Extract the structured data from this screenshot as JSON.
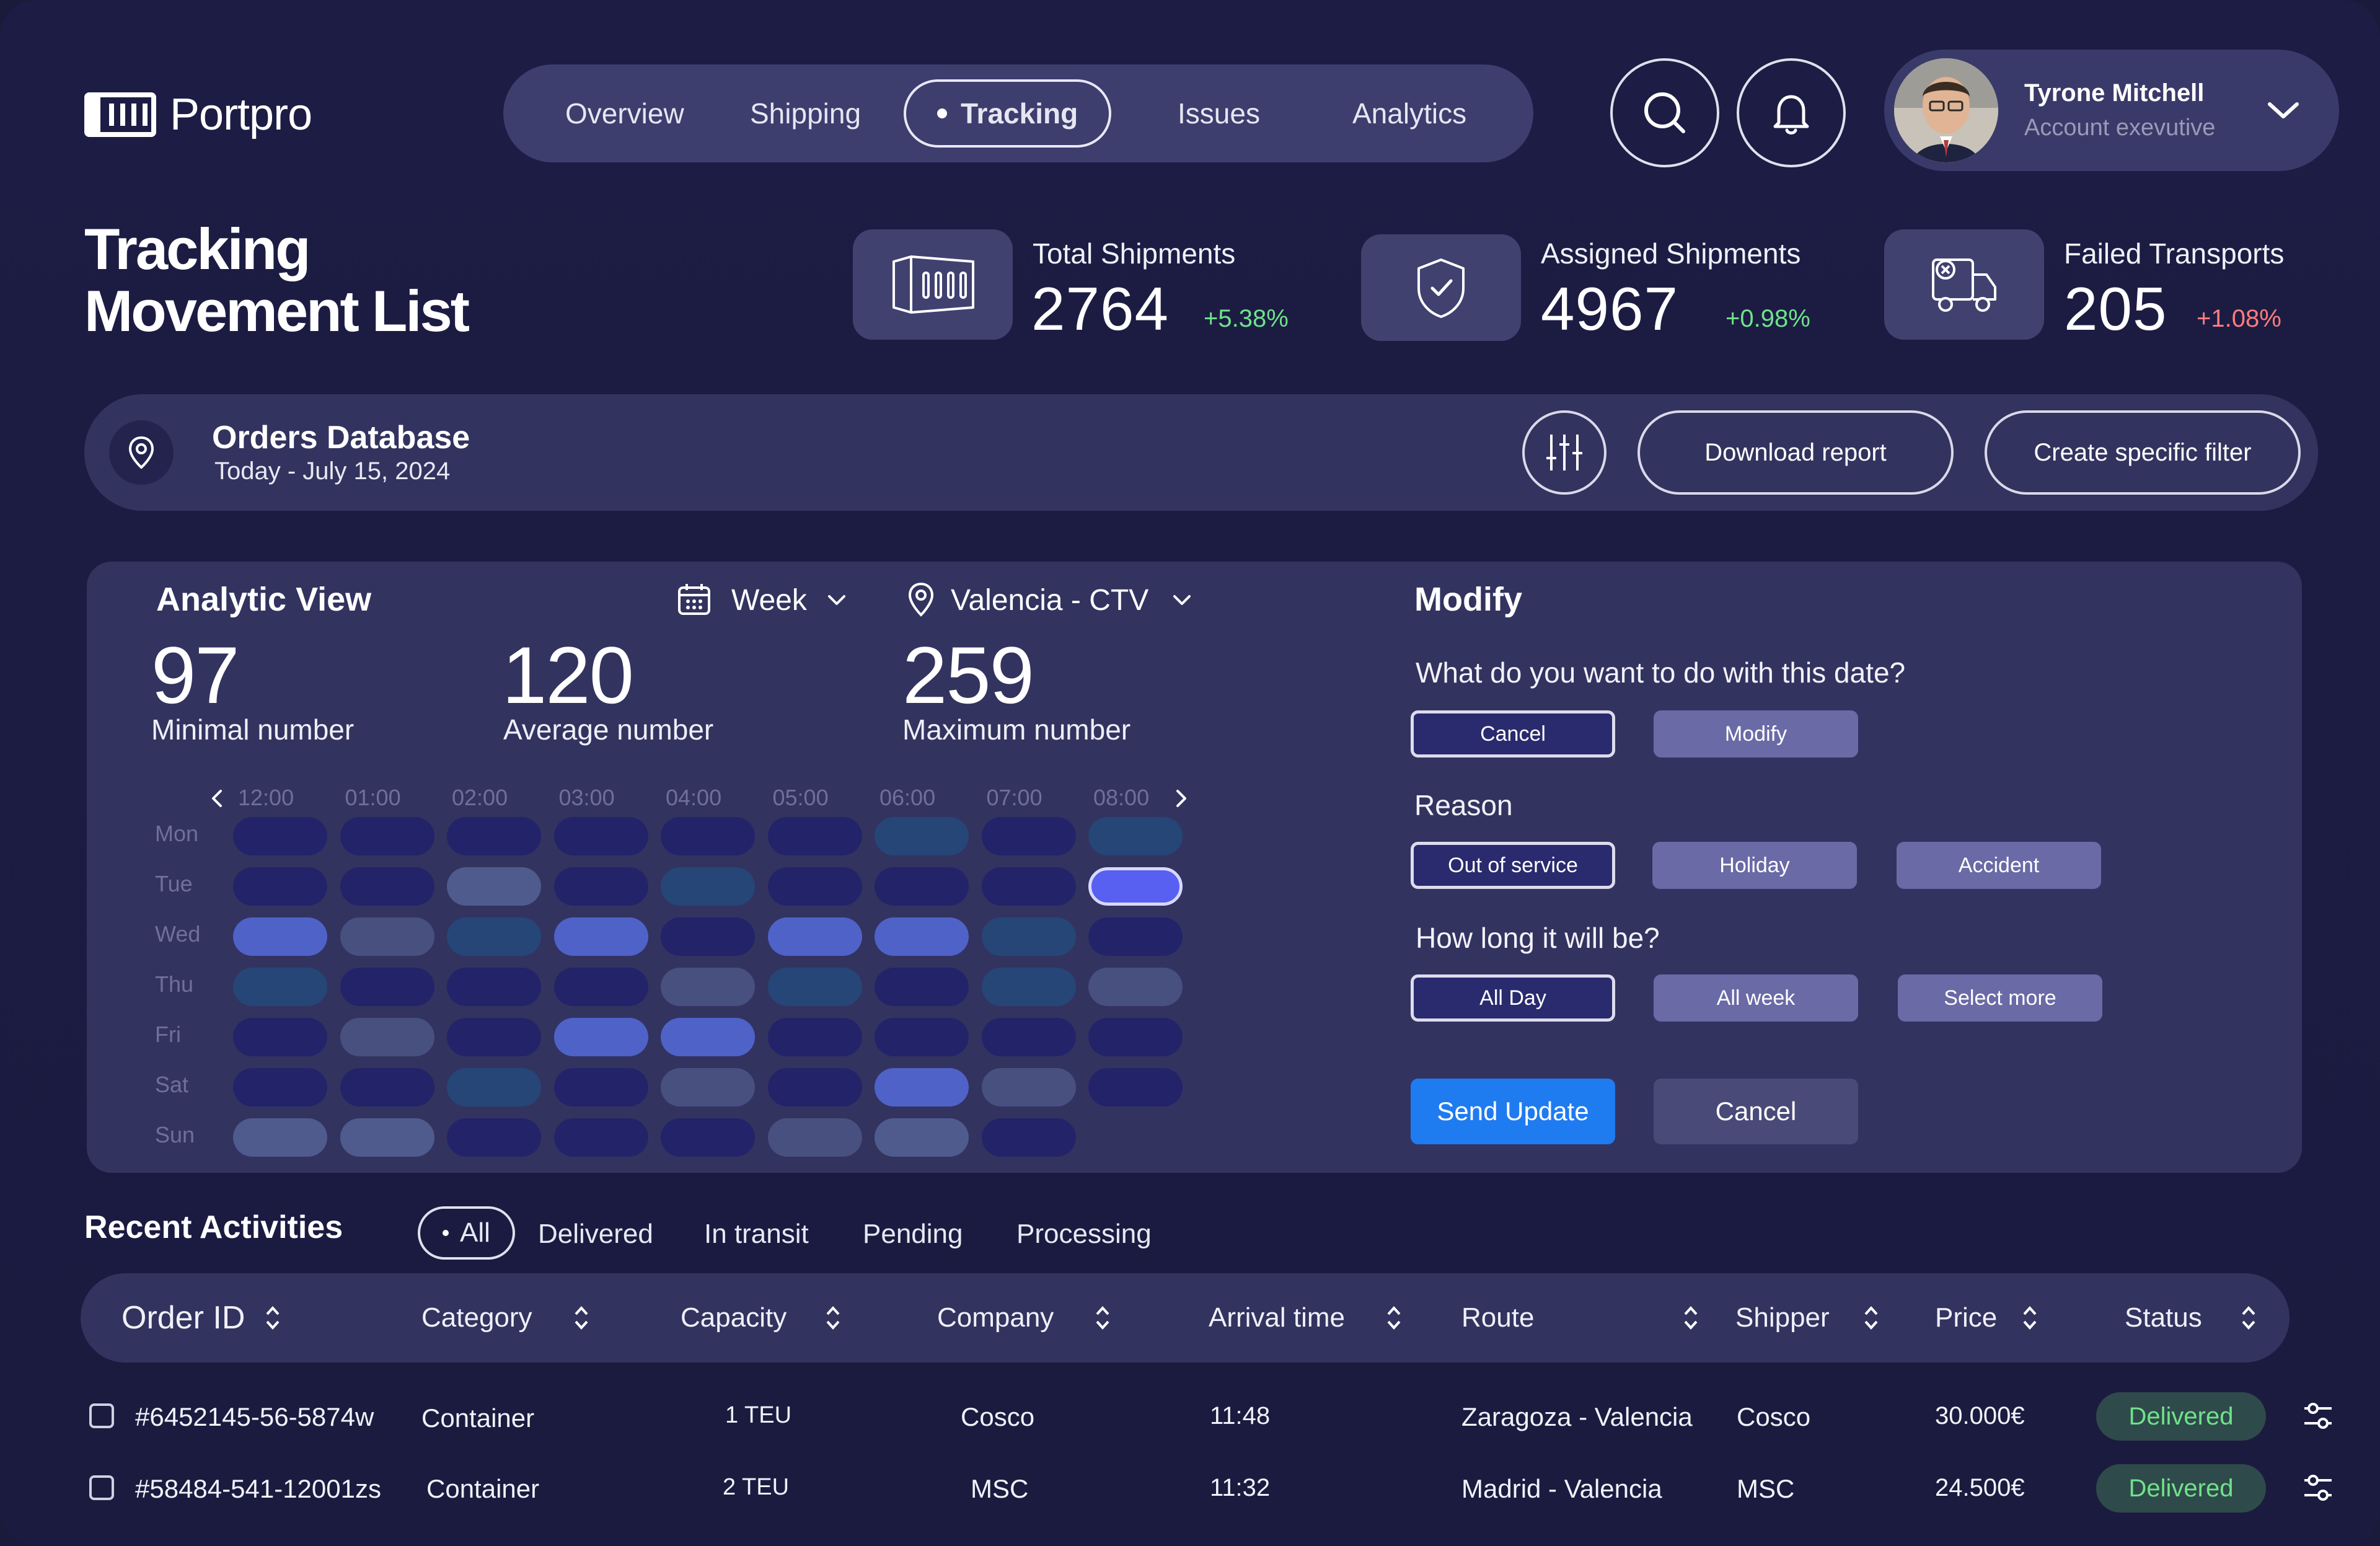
{
  "app": {
    "name": "Portpro"
  },
  "nav": {
    "items": [
      {
        "label": "Overview",
        "active": false
      },
      {
        "label": "Shipping",
        "active": false
      },
      {
        "label": "Tracking",
        "active": true
      },
      {
        "label": "Issues",
        "active": false
      },
      {
        "label": "Analytics",
        "active": false
      }
    ]
  },
  "user": {
    "name": "Tyrone Mitchell",
    "role": "Account exevutive"
  },
  "page": {
    "title_line1": "Tracking",
    "title_line2": "Movement List"
  },
  "stats": [
    {
      "label": "Total Shipments",
      "value": "2764",
      "change": "+5.38%",
      "change_color": "#6fe28a",
      "icon": "container-icon"
    },
    {
      "label": "Assigned Shipments",
      "value": "4967",
      "change": "+0.98%",
      "change_color": "#6fe28a",
      "icon": "shield-check-icon"
    },
    {
      "label": "Failed Transports",
      "value": "205",
      "change": "+1.08%",
      "change_color": "#ff7d7d",
      "icon": "truck-cancel-icon"
    }
  ],
  "orders": {
    "title": "Orders Database",
    "subtitle": "Today - July 15, 2024",
    "download_label": "Download report",
    "filter_label": "Create specific filter"
  },
  "analytic": {
    "title": "Analytic View",
    "period": "Week",
    "location": "Valencia - CTV",
    "min_value": "97",
    "min_label": "Minimal number",
    "avg_value": "120",
    "avg_label": "Average number",
    "max_value": "259",
    "max_label": "Maximum number",
    "times": [
      "12:00",
      "01:00",
      "02:00",
      "03:00",
      "04:00",
      "05:00",
      "06:00",
      "07:00",
      "08:00"
    ],
    "days": [
      "Mon",
      "Tue",
      "Wed",
      "Thu",
      "Fri",
      "Sat",
      "Sun"
    ],
    "heat_levels": [
      [
        1,
        1,
        1,
        1,
        1,
        1,
        2,
        1,
        2
      ],
      [
        1,
        1,
        4,
        1,
        2,
        1,
        1,
        1,
        6
      ],
      [
        5,
        3,
        2,
        5,
        1,
        5,
        5,
        2,
        1
      ],
      [
        2,
        1,
        1,
        1,
        3,
        2,
        1,
        2,
        3
      ],
      [
        1,
        3,
        1,
        5,
        5,
        1,
        1,
        1,
        1
      ],
      [
        1,
        1,
        2,
        1,
        3,
        1,
        5,
        3,
        1
      ],
      [
        4,
        4,
        1,
        1,
        1,
        3,
        4,
        1,
        0
      ]
    ],
    "heat_colors": [
      "transparent",
      "#23236a",
      "#254677",
      "#47507f",
      "#4f5b8d",
      "#4f62c8",
      "#5760f0"
    ]
  },
  "modify": {
    "title": "Modify",
    "q1": "What do you want to do with this date?",
    "q1_options": [
      "Cancel",
      "Modify"
    ],
    "reason_label": "Reason",
    "reason_options": [
      "Out of service",
      "Holiday",
      "Accident"
    ],
    "q3": "How long it will be?",
    "q3_options": [
      "All Day",
      "All week",
      "Select more"
    ],
    "send_label": "Send Update",
    "cancel_label": "Cancel"
  },
  "activities": {
    "title": "Recent Activities",
    "filters": [
      "All",
      "Delivered",
      "In transit",
      "Pending",
      "Processing"
    ],
    "columns": [
      "Order ID",
      "Category",
      "Capacity",
      "Company",
      "Arrival time",
      "Route",
      "Shipper",
      "Price",
      "Status"
    ],
    "rows": [
      {
        "id": "#6452145-56-5874w",
        "category": "Container",
        "capacity": "1 TEU",
        "company": "Cosco",
        "arrival": "11:48",
        "route": "Zaragoza - Valencia",
        "shipper": "Cosco",
        "price": "30.000€",
        "status": "Delivered"
      },
      {
        "id": "#58484-541-12001zs",
        "category": "Container",
        "capacity": "2 TEU",
        "company": "MSC",
        "arrival": "11:32",
        "route": "Madrid - Valencia",
        "shipper": "MSC",
        "price": "24.500€",
        "status": "Delivered"
      }
    ]
  }
}
